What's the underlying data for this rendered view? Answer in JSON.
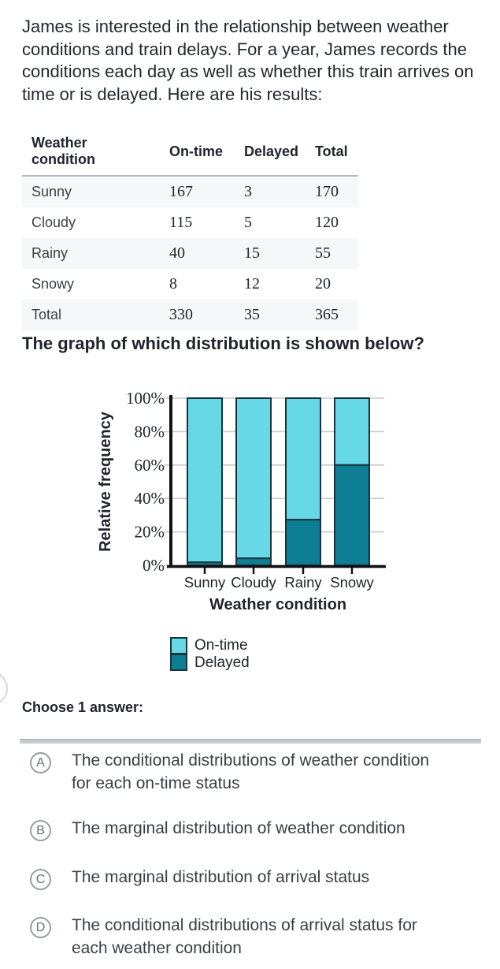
{
  "intro": "James is interested in the relationship between weather conditions and train delays. For a year, James records the conditions each day as well as whether this train arrives on time or is delayed. Here are his results:",
  "table": {
    "headers": [
      "Weather condition",
      "On-time",
      "Delayed",
      "Total"
    ],
    "rows": [
      [
        "Sunny",
        "167",
        "3",
        "170"
      ],
      [
        "Cloudy",
        "115",
        "5",
        "120"
      ],
      [
        "Rainy",
        "40",
        "15",
        "55"
      ],
      [
        "Snowy",
        "8",
        "12",
        "20"
      ],
      [
        "Total",
        "330",
        "35",
        "365"
      ]
    ]
  },
  "question": "The graph of which distribution is shown below?",
  "chart_data": {
    "type": "bar",
    "stacked": true,
    "categories": [
      "Sunny",
      "Cloudy",
      "Rainy",
      "Snowy"
    ],
    "series": [
      {
        "name": "On-time",
        "values": [
          98.2,
          95.8,
          72.7,
          40
        ],
        "color": "#67d8e6"
      },
      {
        "name": "Delayed",
        "values": [
          1.8,
          4.2,
          27.3,
          60
        ],
        "color": "#0e7e94"
      }
    ],
    "xlabel": "Weather condition",
    "ylabel": "Relative frequency",
    "ylim": [
      0,
      100
    ],
    "y_ticks": [
      "0%",
      "20%",
      "40%",
      "60%",
      "80%",
      "100%"
    ],
    "grid": true,
    "legend_position": "below-chart",
    "bar_outline": "#17333d",
    "axis_color": "#111111",
    "grid_color": "#c9cacc"
  },
  "choose_prompt": "Choose 1 answer:",
  "answers": [
    {
      "letter": "A",
      "text": "The conditional distributions of weather condition for each on-time status"
    },
    {
      "letter": "B",
      "text": "The marginal distribution of weather condition"
    },
    {
      "letter": "C",
      "text": "The marginal distribution of arrival status"
    },
    {
      "letter": "D",
      "text": "The conditional distributions of arrival status for each weather condition"
    }
  ]
}
